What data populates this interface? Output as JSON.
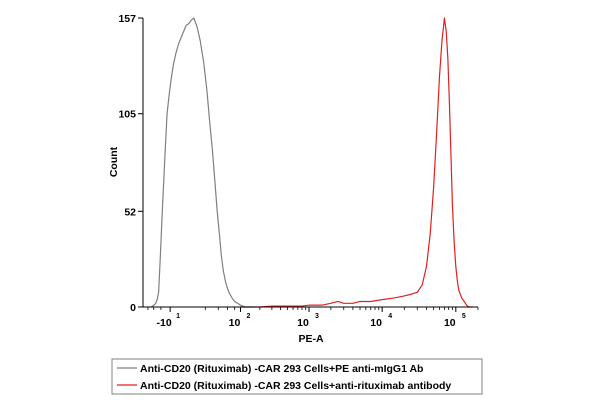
{
  "chart_data": {
    "type": "line",
    "title": "",
    "xlabel": "PE-A",
    "ylabel": "Count",
    "x_scale": "biexponential",
    "xlim": [
      -50,
      200000
    ],
    "ylim": [
      0,
      157
    ],
    "x_ticks": [
      {
        "value": -10,
        "base": "-10",
        "exp": "1"
      },
      {
        "value": 100,
        "base": "10",
        "exp": "2"
      },
      {
        "value": 1000,
        "base": "10",
        "exp": "3"
      },
      {
        "value": 10000,
        "base": "10",
        "exp": "4"
      },
      {
        "value": 100000,
        "base": "10",
        "exp": "5"
      }
    ],
    "y_ticks": [
      0,
      52,
      105,
      157
    ],
    "grid": false,
    "legend_position": "bottom",
    "series": [
      {
        "name": "Anti-CD20 (Rituximab) -CAR 293 Cells+PE anti-mIgG1 Ab",
        "color": "#7f7f7f",
        "points": [
          [
            -34,
            0
          ],
          [
            -30,
            1
          ],
          [
            -27,
            2
          ],
          [
            -25,
            4
          ],
          [
            -23,
            8
          ],
          [
            -21,
            25
          ],
          [
            -18,
            55
          ],
          [
            -15,
            85
          ],
          [
            -13,
            105
          ],
          [
            -11,
            115
          ],
          [
            -9,
            124
          ],
          [
            -7,
            132
          ],
          [
            -5,
            138
          ],
          [
            -3,
            143
          ],
          [
            -1,
            147
          ],
          [
            0.5,
            150
          ],
          [
            2,
            153
          ],
          [
            4,
            154
          ],
          [
            6,
            156
          ],
          [
            8,
            157
          ],
          [
            11,
            152
          ],
          [
            14,
            145
          ],
          [
            18,
            133
          ],
          [
            22,
            118
          ],
          [
            26,
            100
          ],
          [
            30,
            85
          ],
          [
            34,
            68
          ],
          [
            38,
            52
          ],
          [
            42,
            40
          ],
          [
            46,
            28
          ],
          [
            50,
            20
          ],
          [
            55,
            14
          ],
          [
            60,
            10
          ],
          [
            66,
            7
          ],
          [
            72,
            5
          ],
          [
            80,
            3
          ],
          [
            90,
            2
          ],
          [
            100,
            1
          ],
          [
            120,
            0
          ],
          [
            150,
            0
          ]
        ]
      },
      {
        "name": "Anti-CD20 (Rituximab) -CAR 293 Cells+anti-rituximab antibody",
        "color": "#e02020",
        "points": [
          [
            100,
            0
          ],
          [
            150,
            0
          ],
          [
            200,
            0
          ],
          [
            300,
            0.5
          ],
          [
            500,
            0.5
          ],
          [
            800,
            0.5
          ],
          [
            1000,
            1
          ],
          [
            1500,
            1
          ],
          [
            2000,
            2
          ],
          [
            2500,
            3
          ],
          [
            3000,
            2
          ],
          [
            4000,
            2
          ],
          [
            5000,
            3
          ],
          [
            7000,
            3
          ],
          [
            10000,
            4
          ],
          [
            15000,
            5
          ],
          [
            20000,
            6
          ],
          [
            25000,
            7
          ],
          [
            30000,
            8
          ],
          [
            35000,
            12
          ],
          [
            40000,
            22
          ],
          [
            45000,
            40
          ],
          [
            50000,
            65
          ],
          [
            55000,
            95
          ],
          [
            60000,
            125
          ],
          [
            65000,
            145
          ],
          [
            68000,
            152
          ],
          [
            70000,
            157
          ],
          [
            74000,
            150
          ],
          [
            78000,
            135
          ],
          [
            82000,
            110
          ],
          [
            86000,
            82
          ],
          [
            90000,
            55
          ],
          [
            95000,
            35
          ],
          [
            100000,
            22
          ],
          [
            105000,
            14
          ],
          [
            110000,
            9
          ],
          [
            120000,
            5
          ],
          [
            130000,
            3
          ],
          [
            140000,
            1
          ],
          [
            150000,
            0
          ],
          [
            170000,
            0
          ]
        ]
      }
    ]
  }
}
